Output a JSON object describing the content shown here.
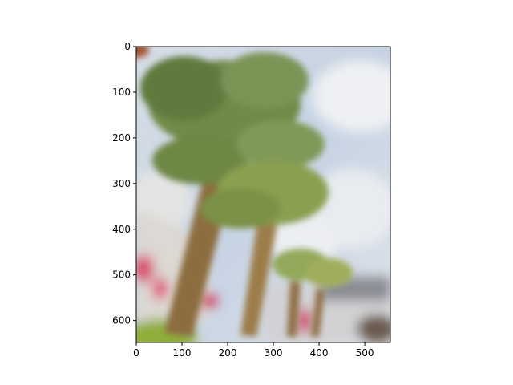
{
  "figure": {
    "description_colors": {
      "sky": "#c9d6e6",
      "cloud": "#e9ecf1",
      "palm_frond": "#6f8a4a",
      "palm_trunk": "#8c6d3f",
      "building": "#d9d6d2",
      "flowers": "#d94a6a",
      "shrub": "#8fae3a"
    }
  },
  "axes": {
    "x_ticks": [
      "0",
      "100",
      "200",
      "300",
      "400",
      "500"
    ],
    "y_ticks": [
      "0",
      "100",
      "200",
      "300",
      "400",
      "500",
      "600"
    ],
    "x_range": [
      0,
      556
    ],
    "y_range": [
      0,
      648
    ],
    "y_inverted": true
  }
}
